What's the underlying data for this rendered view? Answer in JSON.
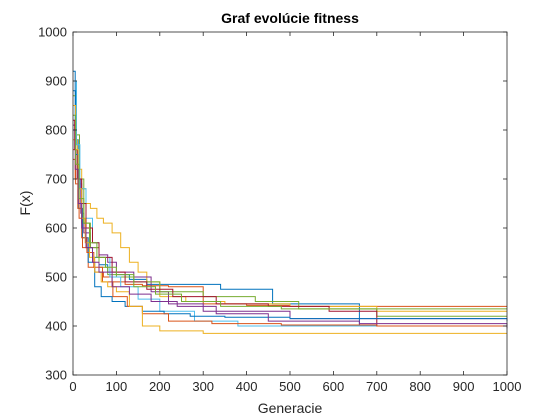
{
  "chart_data": {
    "type": "line",
    "title": "Graf evolúcie fitness",
    "xlabel": "Generacie",
    "ylabel": "F(x)",
    "xlim": [
      0,
      1000
    ],
    "ylim": [
      300,
      1000
    ],
    "xticks": [
      0,
      100,
      200,
      300,
      400,
      500,
      600,
      700,
      800,
      900,
      1000
    ],
    "yticks": [
      300,
      400,
      500,
      600,
      700,
      800,
      900,
      1000
    ],
    "grid": false,
    "legend": "none",
    "series": [
      {
        "color": "#0072BD",
        "x": [
          0,
          5,
          12,
          20,
          30,
          45,
          60,
          80,
          100,
          130,
          170,
          250,
          340,
          460,
          520,
          660,
          1000
        ],
        "y": [
          920,
          780,
          690,
          610,
          560,
          540,
          525,
          510,
          505,
          495,
          485,
          485,
          475,
          445,
          445,
          400,
          400
        ]
      },
      {
        "color": "#D95319",
        "x": [
          0,
          6,
          14,
          22,
          35,
          50,
          70,
          90,
          120,
          160,
          220,
          300,
          400,
          500,
          1000
        ],
        "y": [
          760,
          690,
          620,
          560,
          520,
          510,
          500,
          490,
          485,
          482,
          480,
          445,
          442,
          440,
          440
        ]
      },
      {
        "color": "#EDB120",
        "x": [
          0,
          10,
          20,
          30,
          40,
          55,
          70,
          90,
          110,
          130,
          150,
          170,
          200,
          260,
          350,
          500,
          700,
          1000
        ],
        "y": [
          780,
          720,
          680,
          650,
          640,
          620,
          610,
          590,
          560,
          530,
          510,
          490,
          460,
          450,
          445,
          440,
          430,
          430
        ]
      },
      {
        "color": "#7E2F8E",
        "x": [
          0,
          5,
          10,
          18,
          25,
          40,
          60,
          80,
          100,
          140,
          180,
          220,
          300,
          500,
          700,
          1000
        ],
        "y": [
          810,
          760,
          700,
          630,
          590,
          560,
          545,
          530,
          510,
          500,
          470,
          445,
          430,
          415,
          415,
          415
        ]
      },
      {
        "color": "#77AC30",
        "x": [
          0,
          7,
          15,
          25,
          40,
          60,
          80,
          100,
          140,
          200,
          300,
          420,
          520,
          700,
          1000
        ],
        "y": [
          870,
          790,
          700,
          610,
          560,
          520,
          505,
          500,
          490,
          470,
          460,
          450,
          435,
          420,
          420
        ]
      },
      {
        "color": "#4DBEEE",
        "x": [
          0,
          8,
          16,
          30,
          45,
          60,
          85,
          110,
          150,
          200,
          280,
          380,
          500,
          700,
          1000
        ],
        "y": [
          900,
          770,
          680,
          620,
          570,
          540,
          500,
          480,
          455,
          430,
          410,
          400,
          400,
          400,
          400
        ]
      },
      {
        "color": "#A2142F",
        "x": [
          0,
          4,
          10,
          20,
          30,
          45,
          60,
          90,
          120,
          170,
          230,
          330,
          450,
          590,
          700,
          1000
        ],
        "y": [
          820,
          760,
          700,
          650,
          600,
          570,
          540,
          510,
          490,
          475,
          460,
          445,
          440,
          430,
          400,
          400
        ]
      },
      {
        "color": "#0072BD",
        "x": [
          0,
          6,
          12,
          22,
          35,
          50,
          65,
          90,
          120,
          160,
          210,
          270,
          350,
          500,
          1000
        ],
        "y": [
          880,
          750,
          640,
          580,
          530,
          480,
          460,
          450,
          440,
          430,
          425,
          420,
          418,
          415,
          410
        ]
      },
      {
        "color": "#D95319",
        "x": [
          0,
          5,
          11,
          20,
          32,
          48,
          68,
          92,
          125,
          160,
          220,
          320,
          480,
          700,
          1000
        ],
        "y": [
          740,
          700,
          640,
          580,
          550,
          520,
          490,
          460,
          440,
          425,
          410,
          405,
          402,
          400,
          400
        ]
      },
      {
        "color": "#EDB120",
        "x": [
          0,
          6,
          12,
          20,
          28,
          38,
          50,
          65,
          80,
          100,
          130,
          160,
          200,
          300,
          500,
          800,
          1000
        ],
        "y": [
          850,
          760,
          680,
          620,
          570,
          540,
          510,
          490,
          480,
          470,
          440,
          400,
          390,
          385,
          385,
          385,
          385
        ]
      },
      {
        "color": "#7E2F8E",
        "x": [
          0,
          5,
          12,
          20,
          30,
          45,
          60,
          90,
          130,
          180,
          240,
          330,
          450,
          660,
          1000
        ],
        "y": [
          800,
          720,
          650,
          600,
          560,
          530,
          510,
          480,
          465,
          450,
          440,
          425,
          410,
          405,
          395
        ]
      },
      {
        "color": "#77AC30",
        "x": [
          0,
          6,
          14,
          25,
          38,
          55,
          75,
          100,
          140,
          190,
          250,
          340,
          480,
          620,
          1000
        ],
        "y": [
          830,
          730,
          660,
          610,
          570,
          540,
          520,
          505,
          480,
          465,
          450,
          440,
          435,
          435,
          435
        ]
      }
    ]
  }
}
